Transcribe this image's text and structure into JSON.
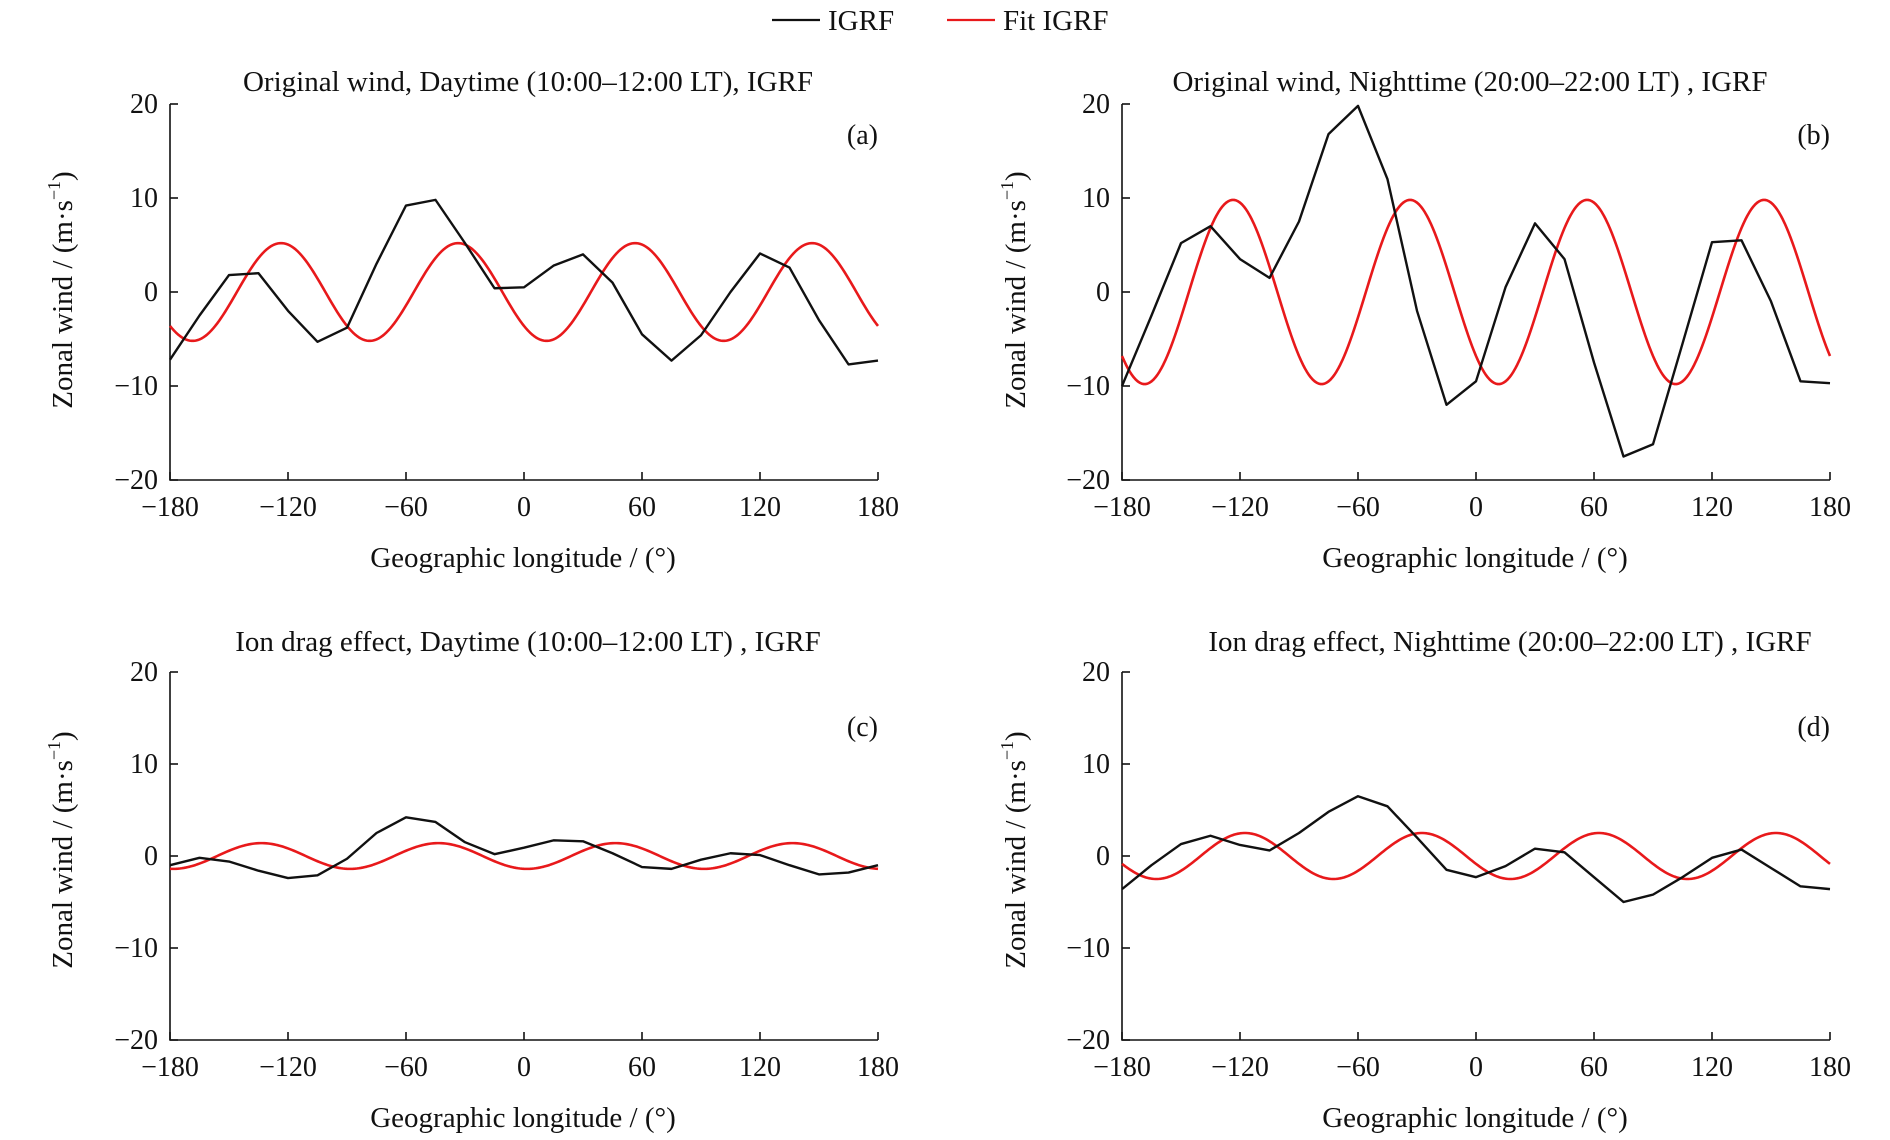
{
  "legend": {
    "entries": [
      {
        "label": "IGRF",
        "color": "#111111"
      },
      {
        "label": "Fit IGRF",
        "color": "#e8191b"
      }
    ]
  },
  "chart_data": [
    {
      "type": "line",
      "panel_label": "(a)",
      "title": "Original wind, Daytime (10:00–12:00 LT), IGRF",
      "xlabel": "Geographic longitude / (°)",
      "ylabel": "Zonal wind / (m·s⁻¹)",
      "xlim": [
        -180,
        180
      ],
      "ylim": [
        -20,
        20
      ],
      "xticks": [
        -180,
        -120,
        -60,
        0,
        60,
        120,
        180
      ],
      "yticks": [
        20,
        10,
        0,
        -10,
        -20
      ],
      "xtick_labels": [
        "−180",
        "−120",
        "−60",
        "0",
        "60",
        "120",
        "180"
      ],
      "ytick_labels": [
        "20",
        "10",
        "0",
        "−10",
        "−20"
      ],
      "series": [
        {
          "name": "IGRF",
          "color": "#111111",
          "x": [
            -180,
            -165,
            -150,
            -135,
            -120,
            -105,
            -90,
            -75,
            -60,
            -45,
            -30,
            -15,
            0,
            15,
            30,
            45,
            60,
            75,
            90,
            105,
            120,
            135,
            150,
            165,
            180
          ],
          "y": [
            -7.2,
            -2.5,
            1.8,
            2.0,
            -2.0,
            -5.3,
            -3.8,
            3.0,
            9.2,
            9.8,
            5.2,
            0.4,
            0.5,
            2.8,
            4.0,
            1.0,
            -4.5,
            -7.3,
            -4.6,
            0.0,
            4.1,
            2.6,
            -3.0,
            -7.7,
            -7.3
          ]
        },
        {
          "name": "Fit IGRF",
          "color": "#e8191b",
          "fit": {
            "amplitude": 5.2,
            "cycles": 4,
            "phase_deg": -146
          }
        }
      ]
    },
    {
      "type": "line",
      "panel_label": "(b)",
      "title": "Original wind, Nighttime (20:00–22:00 LT) , IGRF",
      "xlabel": "Geographic longitude / (°)",
      "ylabel": "Zonal wind / (m·s⁻¹)",
      "xlim": [
        -180,
        180
      ],
      "ylim": [
        -20,
        20
      ],
      "xticks": [
        -180,
        -120,
        -60,
        0,
        60,
        120,
        180
      ],
      "yticks": [
        20,
        10,
        0,
        -10,
        -20
      ],
      "xtick_labels": [
        "−180",
        "−120",
        "−60",
        "0",
        "60",
        "120",
        "180"
      ],
      "ytick_labels": [
        "20",
        "10",
        "0",
        "−10",
        "−20"
      ],
      "series": [
        {
          "name": "IGRF",
          "color": "#111111",
          "x": [
            -180,
            -165,
            -150,
            -135,
            -120,
            -105,
            -90,
            -75,
            -60,
            -45,
            -30,
            -15,
            0,
            15,
            30,
            45,
            60,
            75,
            90,
            105,
            120,
            135,
            150,
            165,
            180
          ],
          "y": [
            -10.0,
            -2.5,
            5.2,
            7.0,
            3.5,
            1.5,
            7.5,
            16.8,
            19.8,
            12.0,
            -2.0,
            -12.0,
            -9.5,
            0.5,
            7.3,
            3.5,
            -7.5,
            -17.5,
            -16.2,
            -5.5,
            5.3,
            5.5,
            -1.0,
            -9.5,
            -9.7
          ]
        },
        {
          "name": "Fit IGRF",
          "color": "#e8191b",
          "fit": {
            "amplitude": 9.8,
            "cycles": 4,
            "phase_deg": -146
          }
        }
      ]
    },
    {
      "type": "line",
      "panel_label": "(c)",
      "title": "Ion drag effect, Daytime (10:00–12:00 LT) , IGRF",
      "xlabel": "Geographic longitude / (°)",
      "ylabel": "Zonal wind / (m·s⁻¹)",
      "xlim": [
        -180,
        180
      ],
      "ylim": [
        -20,
        20
      ],
      "xticks": [
        -180,
        -120,
        -60,
        0,
        60,
        120,
        180
      ],
      "yticks": [
        20,
        10,
        0,
        -10,
        -20
      ],
      "xtick_labels": [
        "−180",
        "−120",
        "−60",
        "0",
        "60",
        "120",
        "180"
      ],
      "ytick_labels": [
        "20",
        "10",
        "0",
        "−10",
        "−20"
      ],
      "series": [
        {
          "name": "IGRF",
          "color": "#111111",
          "x": [
            -180,
            -165,
            -150,
            -135,
            -120,
            -105,
            -90,
            -75,
            -60,
            -45,
            -30,
            -15,
            0,
            15,
            30,
            45,
            60,
            75,
            90,
            105,
            120,
            135,
            150,
            165,
            180
          ],
          "y": [
            -1.0,
            -0.2,
            -0.6,
            -1.6,
            -2.4,
            -2.1,
            -0.3,
            2.5,
            4.2,
            3.7,
            1.5,
            0.2,
            0.9,
            1.7,
            1.6,
            0.3,
            -1.2,
            -1.4,
            -0.4,
            0.3,
            0.1,
            -1.0,
            -2.0,
            -1.8,
            -1.0
          ]
        },
        {
          "name": "Fit IGRF",
          "color": "#e8191b",
          "fit": {
            "amplitude": 1.4,
            "cycles": 4,
            "phase_deg": -156
          }
        }
      ]
    },
    {
      "type": "line",
      "panel_label": "(d)",
      "title": "Ion drag effect, Nighttime (20:00–22:00 LT) , IGRF",
      "xlabel": "Geographic longitude / (°)",
      "ylabel": "Zonal wind / (m·s⁻¹)",
      "xlim": [
        -180,
        180
      ],
      "ylim": [
        -20,
        20
      ],
      "xticks": [
        -180,
        -120,
        -60,
        0,
        60,
        120,
        180
      ],
      "yticks": [
        20,
        10,
        0,
        -10,
        -20
      ],
      "xtick_labels": [
        "−180",
        "−120",
        "−60",
        "0",
        "60",
        "120",
        "180"
      ],
      "ytick_labels": [
        "20",
        "10",
        "0",
        "−10",
        "−20"
      ],
      "series": [
        {
          "name": "IGRF",
          "color": "#111111",
          "x": [
            -180,
            -165,
            -150,
            -135,
            -120,
            -105,
            -90,
            -75,
            -60,
            -45,
            -30,
            -15,
            0,
            15,
            30,
            45,
            60,
            75,
            90,
            105,
            120,
            135,
            150,
            165,
            180
          ],
          "y": [
            -3.6,
            -1.0,
            1.3,
            2.2,
            1.2,
            0.6,
            2.5,
            4.8,
            6.5,
            5.4,
            2.0,
            -1.5,
            -2.3,
            -1.1,
            0.8,
            0.4,
            -2.3,
            -5.0,
            -4.2,
            -2.3,
            -0.2,
            0.7,
            -1.3,
            -3.3,
            -3.6
          ]
        },
        {
          "name": "Fit IGRF",
          "color": "#e8191b",
          "fit": {
            "amplitude": 2.5,
            "cycles": 4,
            "phase_deg": -140
          }
        }
      ]
    }
  ]
}
